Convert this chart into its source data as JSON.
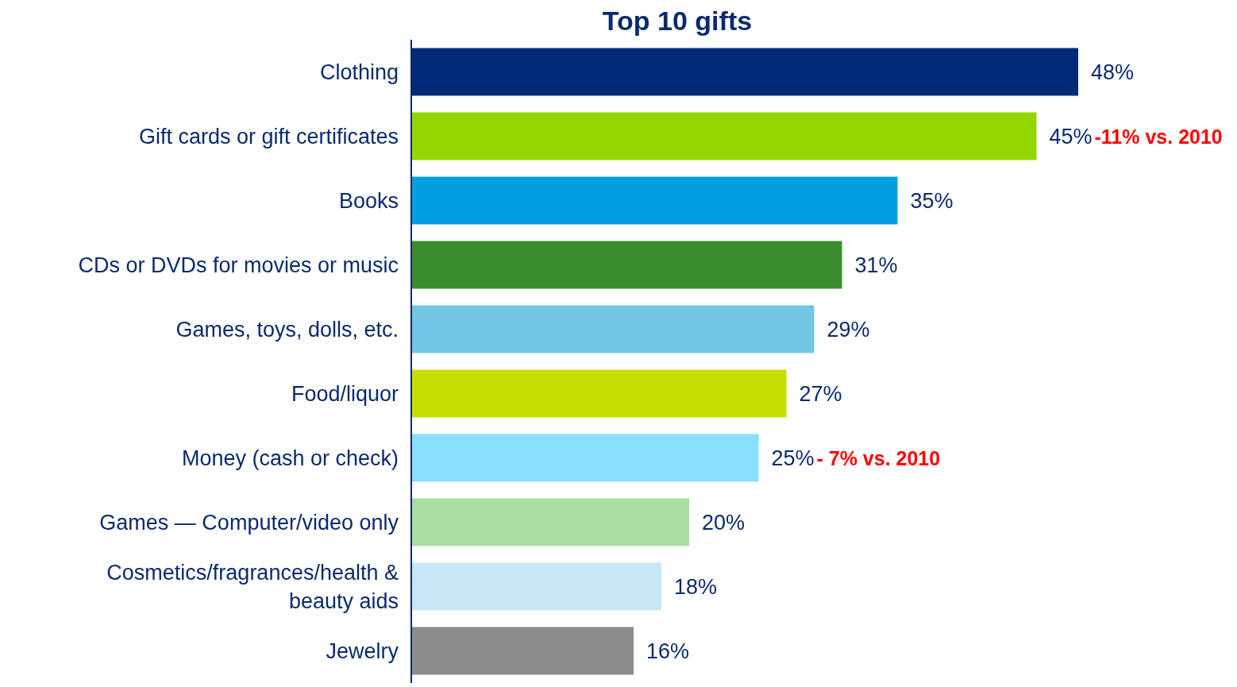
{
  "chart_data": {
    "type": "bar",
    "orientation": "horizontal",
    "title": "Top 10 gifts",
    "categories": [
      "Clothing",
      "Gift cards or gift certificates",
      "Books",
      "CDs or DVDs for movies or music",
      "Games, toys, dolls, etc. ",
      "Food/liquor",
      "Money (cash or check)",
      "Games — Computer/video only",
      "Cosmetics/fragrances/health & beauty aids",
      "Jewelry"
    ],
    "values": [
      48,
      45,
      35,
      31,
      29,
      27,
      25,
      20,
      18,
      16
    ],
    "colors": [
      "#002a77",
      "#94d500",
      "#00a0e0",
      "#3b8c2e",
      "#72c6e4",
      "#c8de00",
      "#8adfff",
      "#a8dea0",
      "#c6e7f3",
      "#8c8c8c"
    ],
    "value_labels": [
      "48%",
      "45%",
      "35%",
      "31%",
      "29%",
      "27%",
      "25%",
      "20%",
      "18%",
      "16%"
    ],
    "annotations": [
      {
        "text": "-11% vs. 2010",
        "x": 45,
        "y": "Gift cards or gift certificates"
      },
      {
        "text": "- 7% vs. 2010",
        "x": 25,
        "y": "Money (cash or check)"
      }
    ]
  }
}
